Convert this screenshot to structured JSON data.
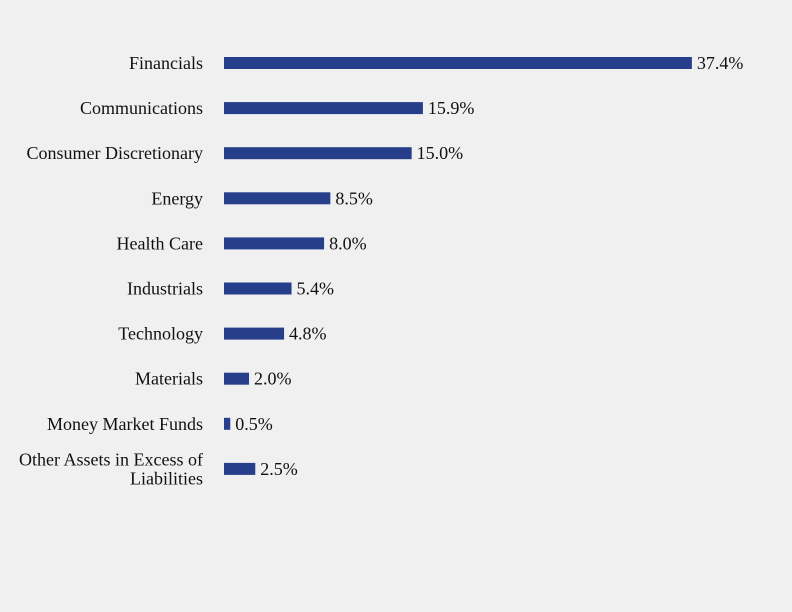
{
  "chart_data": {
    "type": "bar",
    "orientation": "horizontal",
    "title": "",
    "xlabel": "",
    "ylabel": "",
    "grid": false,
    "legend": "none",
    "bar_color": "#273f8a",
    "categories": [
      "Financials",
      "Communications",
      "Consumer Discretionary",
      "Energy",
      "Health Care",
      "Industrials",
      "Technology",
      "Materials",
      "Money Market Funds",
      "Other Assets in Excess of Liabilities"
    ],
    "category_lines": [
      [
        "Financials"
      ],
      [
        "Communications"
      ],
      [
        "Consumer Discretionary"
      ],
      [
        "Energy"
      ],
      [
        "Health Care"
      ],
      [
        "Industrials"
      ],
      [
        "Technology"
      ],
      [
        "Materials"
      ],
      [
        "Money Market Funds"
      ],
      [
        "Other Assets in Excess of",
        "Liabilities"
      ]
    ],
    "values": [
      37.4,
      15.9,
      15.0,
      8.5,
      8.0,
      5.4,
      4.8,
      2.0,
      0.5,
      2.5
    ],
    "value_labels": [
      "37.4%",
      "15.9%",
      "15.0%",
      "8.5%",
      "8.0%",
      "5.4%",
      "4.8%",
      "2.0%",
      "0.5%",
      "2.5%"
    ]
  }
}
